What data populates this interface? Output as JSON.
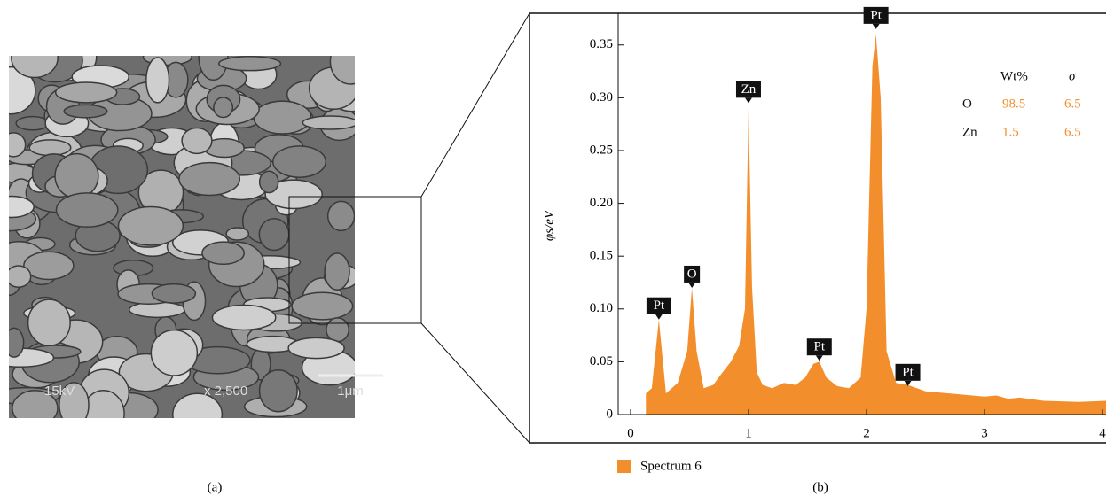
{
  "image": {
    "labels": [
      "15kV",
      "x 2,500",
      "1μm"
    ]
  },
  "captions": [
    "(a)",
    "(b)"
  ],
  "chart_data": {
    "type": "area",
    "y_label": "φs/eV",
    "x": [
      0.13,
      0.18,
      0.24,
      0.3,
      0.4,
      0.48,
      0.52,
      0.56,
      0.62,
      0.7,
      0.78,
      0.85,
      0.92,
      0.97,
      1.0,
      1.03,
      1.07,
      1.12,
      1.2,
      1.3,
      1.4,
      1.48,
      1.55,
      1.6,
      1.66,
      1.75,
      1.85,
      1.95,
      2.0,
      2.05,
      2.08,
      2.12,
      2.17,
      2.25,
      2.35,
      2.5,
      2.7,
      3.0,
      3.1,
      3.2,
      3.3,
      3.5,
      3.8,
      4.03
    ],
    "series": [
      {
        "name": "Spectrum 6",
        "color": "#f28e2b",
        "values": [
          0.02,
          0.025,
          0.09,
          0.02,
          0.03,
          0.06,
          0.12,
          0.06,
          0.025,
          0.028,
          0.04,
          0.05,
          0.065,
          0.1,
          0.29,
          0.12,
          0.04,
          0.028,
          0.025,
          0.03,
          0.028,
          0.035,
          0.048,
          0.05,
          0.035,
          0.027,
          0.025,
          0.035,
          0.1,
          0.33,
          0.36,
          0.3,
          0.06,
          0.03,
          0.028,
          0.022,
          0.02,
          0.017,
          0.018,
          0.015,
          0.016,
          0.013,
          0.012,
          0.013
        ]
      }
    ],
    "annotations": [
      {
        "text": "Pt",
        "x": 0.24,
        "y": 0.09
      },
      {
        "text": "O",
        "x": 0.52,
        "y": 0.12
      },
      {
        "text": "Zn",
        "x": 1.0,
        "y": 0.295
      },
      {
        "text": "Pt",
        "x": 1.6,
        "y": 0.051
      },
      {
        "text": "Pt",
        "x": 2.08,
        "y": 0.365
      },
      {
        "text": "Pt",
        "x": 2.35,
        "y": 0.027
      }
    ],
    "table": {
      "header": [
        "Wt%",
        "σ"
      ],
      "rows": [
        [
          "O",
          98.5,
          6.5
        ],
        [
          "Zn",
          1.5,
          6.5
        ]
      ]
    },
    "xlim": [
      -0.105,
      4.03
    ],
    "ylim": [
      0,
      0.38
    ],
    "xticks": [
      0,
      1,
      2,
      3,
      4
    ],
    "yticks": [
      0,
      0.05,
      {
        "value": 0.1,
        "label": "0.10"
      },
      0.15,
      {
        "value": 0.2,
        "label": "0.20"
      },
      0.25,
      {
        "value": 0.3,
        "label": "0.30"
      },
      0.35
    ]
  }
}
